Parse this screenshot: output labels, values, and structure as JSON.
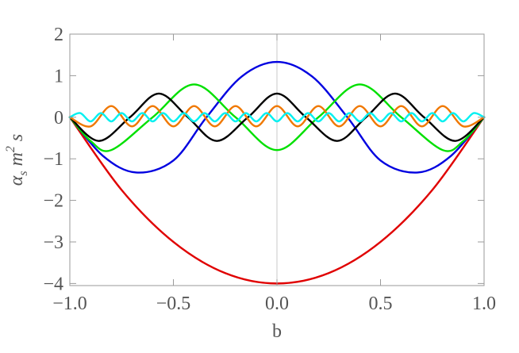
{
  "chart_data": {
    "type": "line",
    "xlabel": "b",
    "ylabel": {
      "base": "α",
      "sub": "s",
      "mid": " m",
      "sup": "2",
      "tail": " s"
    },
    "xlim": [
      -1.0,
      1.0
    ],
    "ylim": [
      -4.05,
      2.0
    ],
    "x_ticks": [
      "-1.0",
      "-0.5",
      "0.0",
      "0.5",
      "1.0"
    ],
    "y_ticks": [
      "2",
      "1",
      "0",
      "-1",
      "-2",
      "-3",
      "-4"
    ],
    "x_ticks_display": [
      "−1.0",
      "−0.5",
      "0.0",
      "0.5",
      "1.0"
    ],
    "y_ticks_display": [
      "2",
      "1",
      "0",
      "−1",
      "−2",
      "−3",
      "−4"
    ],
    "grid": false,
    "series": [
      {
        "color": "#e00000",
        "x": [
          -1.0,
          -0.75,
          -0.5,
          -0.25,
          0.0,
          0.25,
          0.5,
          0.75,
          1.0
        ],
        "values": [
          0,
          -1.75,
          -3.0,
          -3.75,
          -4.0,
          -3.75,
          -3.0,
          -1.75,
          0
        ]
      },
      {
        "color": "#0000e0",
        "x": [
          -1.0,
          -0.84,
          -0.68,
          -0.5,
          -0.34,
          -0.17,
          0.0,
          0.17,
          0.34,
          0.5,
          0.68,
          0.84,
          1.0
        ],
        "values": [
          0,
          -0.93,
          -1.33,
          -1.04,
          0.0,
          0.98,
          1.33,
          0.98,
          0.0,
          -1.04,
          -1.33,
          -0.93,
          0
        ]
      },
      {
        "color": "#00e000",
        "x": [
          -1.0,
          -0.9,
          -0.8,
          -0.6,
          -0.4,
          -0.2,
          0.0,
          0.2,
          0.4,
          0.6,
          0.8,
          0.9,
          1.0
        ],
        "values": [
          0,
          -0.57,
          -0.79,
          0.0,
          0.79,
          0.0,
          -0.79,
          0.0,
          0.79,
          0.0,
          -0.79,
          -0.57,
          0
        ]
      },
      {
        "color": "#000000",
        "x": [
          -1.0,
          -0.86,
          -0.71,
          -0.57,
          -0.43,
          -0.29,
          -0.14,
          0.0,
          0.14,
          0.29,
          0.43,
          0.57,
          0.71,
          0.86,
          1.0
        ],
        "values": [
          0,
          -0.57,
          0.0,
          0.57,
          0.0,
          -0.57,
          0.0,
          0.57,
          0.0,
          -0.57,
          0.0,
          0.57,
          0.0,
          -0.57,
          0
        ]
      },
      {
        "color": "#f07800",
        "x": [
          -1.0,
          -0.9,
          -0.8,
          -0.7,
          -0.6,
          -0.5,
          -0.4,
          -0.3,
          -0.2,
          -0.1,
          0.0,
          0.1,
          0.2,
          0.3,
          0.4,
          0.5,
          0.6,
          0.7,
          0.8,
          0.9,
          1.0
        ],
        "values": [
          0,
          -0.22,
          0.27,
          -0.22,
          0.27,
          -0.22,
          0.27,
          -0.22,
          0.27,
          -0.22,
          0.27,
          -0.22,
          0.27,
          -0.22,
          0.27,
          -0.22,
          0.27,
          -0.22,
          0.27,
          -0.22,
          0
        ]
      },
      {
        "color": "#00f0f0",
        "x": [
          -1.0,
          -0.95,
          -0.9,
          -0.85,
          -0.8,
          -0.75,
          -0.7,
          -0.65,
          -0.6,
          -0.55,
          -0.5,
          -0.45,
          -0.4,
          -0.35,
          -0.3,
          -0.25,
          -0.2,
          -0.15,
          -0.1,
          -0.05,
          0.0,
          0.05,
          0.1,
          0.15,
          0.2,
          0.25,
          0.3,
          0.35,
          0.4,
          0.45,
          0.5,
          0.55,
          0.6,
          0.65,
          0.7,
          0.75,
          0.8,
          0.85,
          0.9,
          0.95,
          1.0
        ],
        "values": [
          0,
          0.1,
          -0.1,
          0.1,
          -0.1,
          0.1,
          -0.1,
          0.1,
          -0.1,
          0.1,
          -0.1,
          0.1,
          -0.1,
          0.1,
          -0.1,
          0.1,
          -0.1,
          0.1,
          -0.1,
          0.1,
          -0.1,
          0.1,
          -0.1,
          0.1,
          -0.1,
          0.1,
          -0.1,
          0.1,
          -0.1,
          0.1,
          -0.1,
          0.1,
          -0.1,
          0.1,
          -0.1,
          0.1,
          -0.1,
          0.1,
          -0.1,
          0.1,
          0
        ]
      }
    ]
  }
}
